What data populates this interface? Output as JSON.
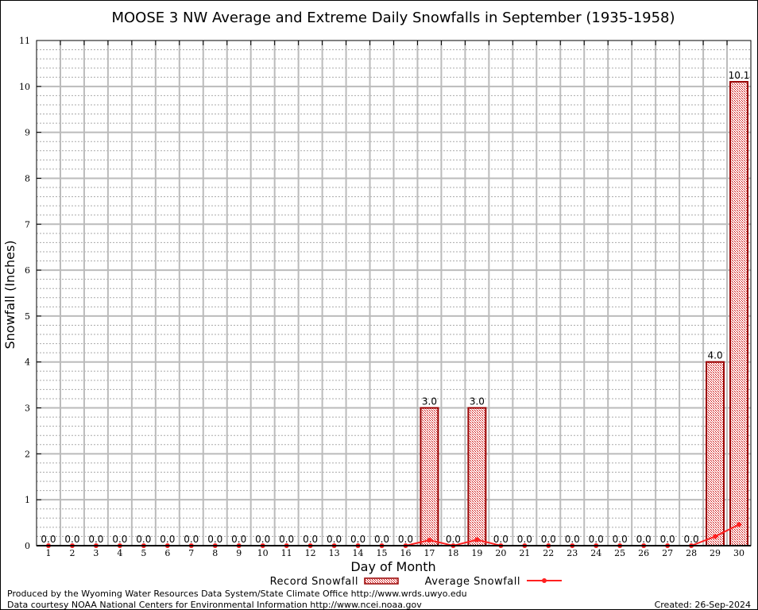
{
  "chart_data": {
    "type": "bar",
    "title": "MOOSE 3 NW Average and Extreme Daily Snowfalls in September (1935-1958)",
    "xlabel": "Day of Month",
    "ylabel": "Snowfall (Inches)",
    "ylim": [
      0,
      11
    ],
    "yticks": [
      "0",
      "1",
      "2",
      "3",
      "4",
      "5",
      "6",
      "7",
      "8",
      "9",
      "10",
      "11"
    ],
    "categories": [
      "1",
      "2",
      "3",
      "4",
      "5",
      "6",
      "7",
      "8",
      "9",
      "10",
      "11",
      "12",
      "13",
      "14",
      "15",
      "16",
      "17",
      "18",
      "19",
      "20",
      "21",
      "22",
      "23",
      "24",
      "25",
      "26",
      "27",
      "28",
      "29",
      "30"
    ],
    "series": [
      {
        "name": "Record Snowfall",
        "type": "bar",
        "color": "#cc0000",
        "values": [
          0,
          0,
          0,
          0,
          0,
          0,
          0,
          0,
          0,
          0,
          0,
          0,
          0,
          0,
          0,
          0,
          3.0,
          0,
          3.0,
          0,
          0,
          0,
          0,
          0,
          0,
          0,
          0,
          0,
          4.0,
          10.1
        ],
        "labels": [
          "0.0",
          "0.0",
          "0.0",
          "0.0",
          "0.0",
          "0.0",
          "0.0",
          "0.0",
          "0.0",
          "0.0",
          "0.0",
          "0.0",
          "0.0",
          "0.0",
          "0.0",
          "0.0",
          "3.0",
          "0.0",
          "3.0",
          "0.0",
          "0.0",
          "0.0",
          "0.0",
          "0.0",
          "0.0",
          "0.0",
          "0.0",
          "0.0",
          "4.0",
          "10.1"
        ]
      },
      {
        "name": "Average Snowfall",
        "type": "line",
        "color": "#ff2020",
        "values": [
          0,
          0,
          0,
          0,
          0,
          0,
          0,
          0,
          0,
          0,
          0,
          0,
          0,
          0,
          0,
          0,
          0.12,
          0,
          0.13,
          0,
          0,
          0,
          0,
          0,
          0,
          0,
          0,
          0,
          0.2,
          0.46
        ]
      }
    ],
    "grid": true,
    "legend": "bottom-center"
  },
  "footer": {
    "line1": "Produced by the Wyoming Water Resources Data System/State Climate Office http://www.wrds.uwyo.edu",
    "line2": "Data courtesy NOAA National Centers for Environmental Information http://www.ncei.noaa.gov",
    "created": "Created: 26-Sep-2024"
  }
}
